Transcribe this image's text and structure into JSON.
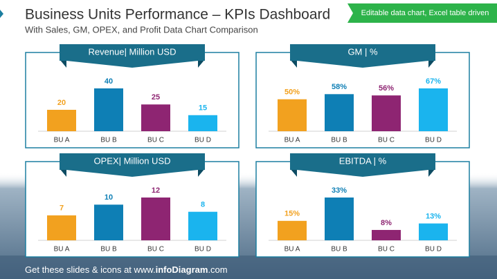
{
  "title": "Business Units Performance – KPIs Dashboard",
  "subtitle": "With Sales, GM, OPEX, and Profit Data Chart Comparison",
  "badge": "Editable data chart, Excel table driven",
  "footer_lead": "Get these slides & icons at www.",
  "footer_brand": "infoDiagram",
  "footer_tail": ".com",
  "chart_data": [
    {
      "type": "bar",
      "title": "Revenue| Million USD",
      "categories": [
        "BU A",
        "BU B",
        "BU C",
        "BU D"
      ],
      "values": [
        20,
        40,
        25,
        15
      ],
      "colors": [
        "#f2a11f",
        "#0e7fb5",
        "#8e2572",
        "#1ab4ee"
      ]
    },
    {
      "type": "bar",
      "title": "GM | %",
      "categories": [
        "BU A",
        "BU B",
        "BU C",
        "BU D"
      ],
      "values": [
        50,
        58,
        56,
        67
      ],
      "value_labels": [
        "50%",
        "58%",
        "56%",
        "67%"
      ],
      "colors": [
        "#f2a11f",
        "#0e7fb5",
        "#8e2572",
        "#1ab4ee"
      ]
    },
    {
      "type": "bar",
      "title": "OPEX| Million USD",
      "categories": [
        "BU A",
        "BU B",
        "BU C",
        "BU D"
      ],
      "values": [
        7,
        10,
        12,
        8
      ],
      "colors": [
        "#f2a11f",
        "#0e7fb5",
        "#8e2572",
        "#1ab4ee"
      ]
    },
    {
      "type": "bar",
      "title": "EBITDA | %",
      "categories": [
        "BU A",
        "BU B",
        "BU C",
        "BU D"
      ],
      "values": [
        15,
        33,
        8,
        13
      ],
      "value_labels": [
        "15%",
        "33%",
        "8%",
        "13%"
      ],
      "colors": [
        "#f2a11f",
        "#0e7fb5",
        "#8e2572",
        "#1ab4ee"
      ]
    }
  ]
}
